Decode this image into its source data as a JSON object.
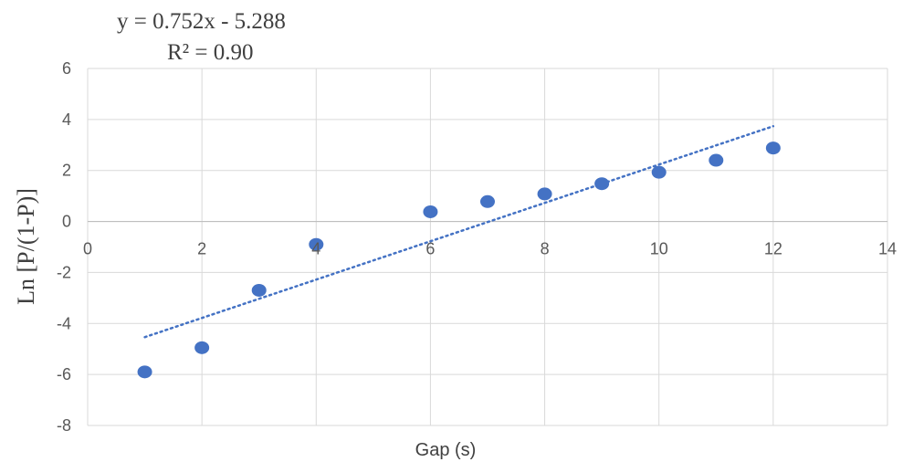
{
  "chart_data": {
    "type": "scatter",
    "x": [
      1,
      2,
      3,
      4,
      6,
      7,
      8,
      9,
      10,
      11,
      12
    ],
    "y": [
      -5.9,
      -4.95,
      -2.7,
      -0.9,
      0.38,
      0.78,
      1.08,
      1.48,
      1.93,
      2.4,
      2.88
    ],
    "xlabel": "Gap (s)",
    "ylabel": "Ln [P/(1-P)]",
    "xlim": [
      0,
      14
    ],
    "ylim": [
      -8,
      6
    ],
    "x_ticks": [
      0,
      2,
      4,
      6,
      8,
      10,
      12,
      14
    ],
    "y_ticks": [
      -8,
      -6,
      -4,
      -2,
      0,
      2,
      4,
      6
    ],
    "grid": true,
    "legend": "none",
    "point_color": "#4472C4",
    "trendline": {
      "type": "linear",
      "slope": 0.752,
      "intercept": -5.288,
      "x_range": [
        1,
        12
      ],
      "style": "dotted",
      "color": "#4472C4",
      "equation_label": "y = 0.752x  - 5.288",
      "r2_label": "R² = 0.90"
    }
  }
}
